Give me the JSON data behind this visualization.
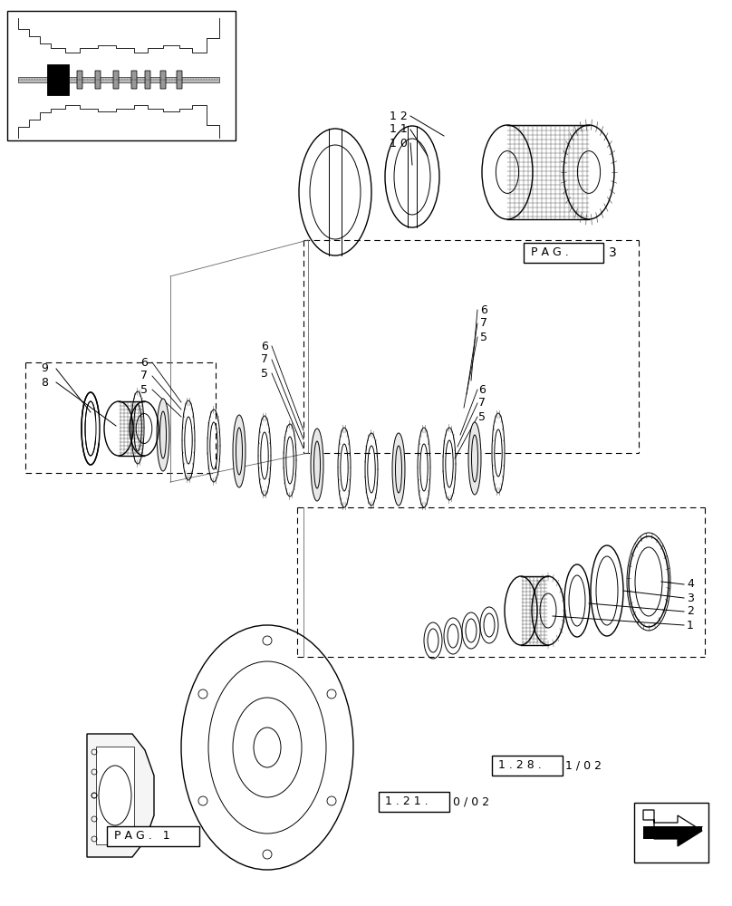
{
  "bg_color": "#ffffff",
  "line_color": "#000000",
  "fig_width": 8.08,
  "fig_height": 10.0,
  "labels": {
    "pag3": "P A G .",
    "pag3_num": "3",
    "pag1": "P A G .   1",
    "ref_1_28a": "1 . 2 8 .",
    "ref_1_28b": "1 / 0 2",
    "ref_1_21a": "1 . 2 1 .",
    "ref_1_21b": "0 / 0 2"
  },
  "part_numbers": [
    "1",
    "2",
    "3",
    "4",
    "5",
    "6",
    "7",
    "8",
    "9",
    "10",
    "11",
    "12"
  ]
}
